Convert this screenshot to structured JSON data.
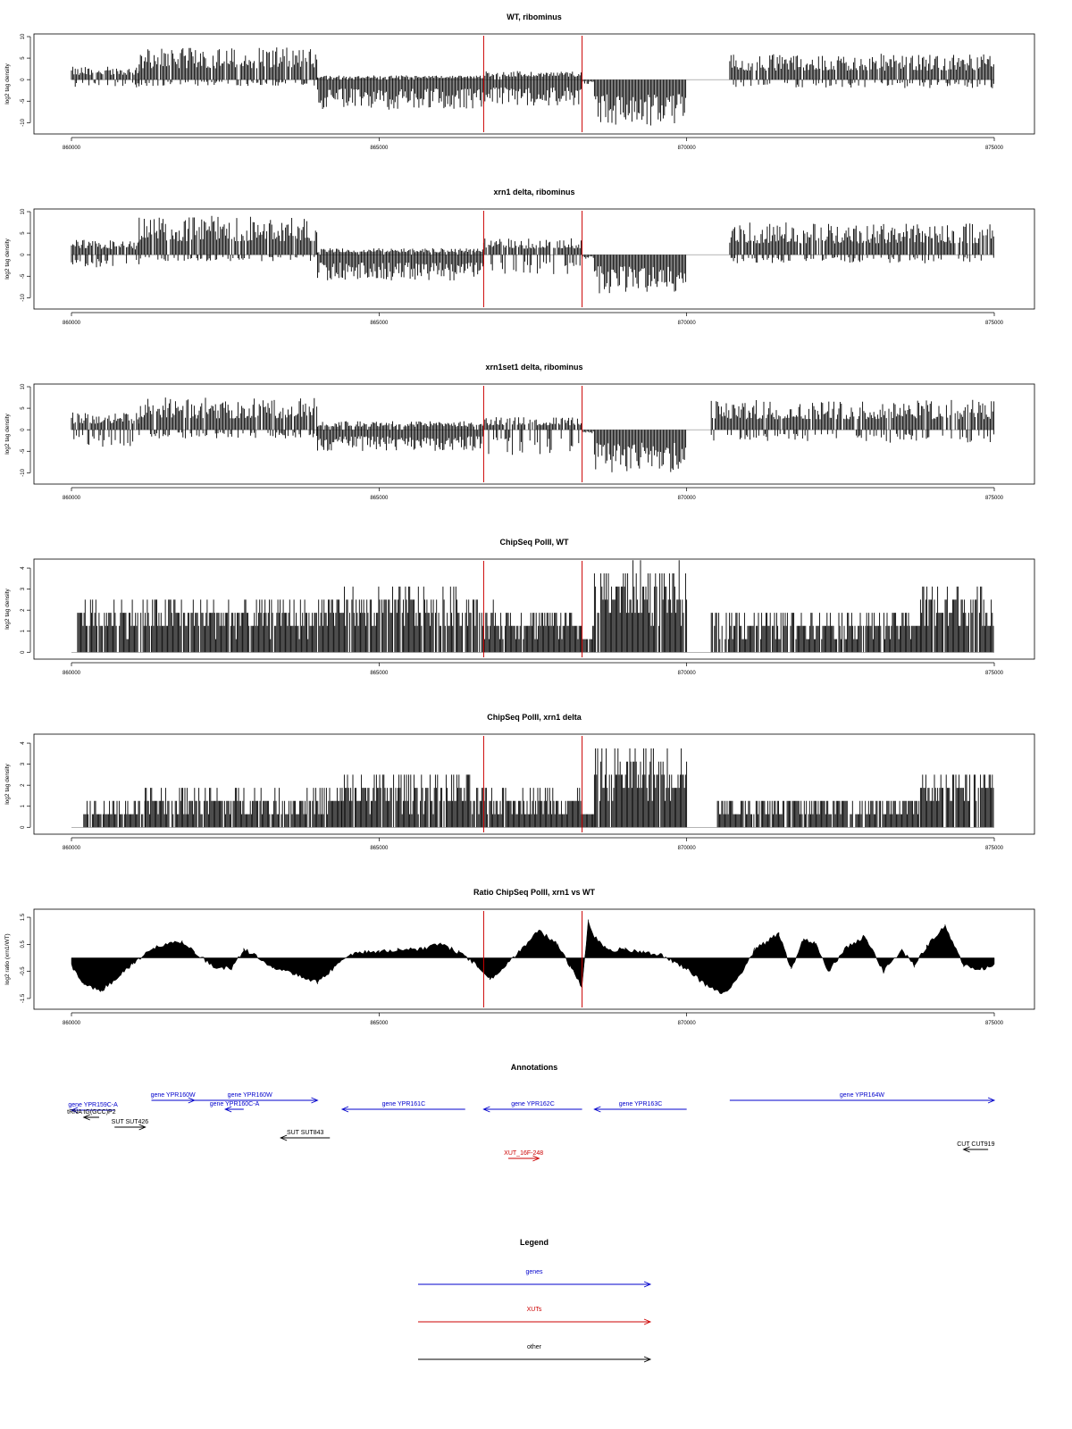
{
  "colors": {
    "signal": "#000000",
    "divider": "#cc0000",
    "genes": "#0000cc",
    "xuts": "#cc0000",
    "other": "#000000",
    "frame": "#000000"
  },
  "chart_data": [
    {
      "id": "wt_ribominus",
      "type": "bar",
      "title": "WT, ribominus",
      "ylabel": "log2 tag density",
      "xlim": [
        860000,
        875000
      ],
      "ylim": [
        -12,
        10
      ],
      "x_ticks": [
        "860000",
        "865000",
        "870000",
        "875000"
      ],
      "y_ticks": [
        "10",
        "5",
        "0",
        "-5",
        "-10"
      ],
      "vlines": [
        866700,
        868300
      ],
      "segments": [
        {
          "x0": 860000,
          "x1": 861100,
          "lo": -2,
          "hi": 3
        },
        {
          "x0": 861100,
          "x1": 864000,
          "lo": -1.5,
          "hi": 7.5
        },
        {
          "x0": 864000,
          "x1": 866700,
          "lo": -7,
          "hi": 1
        },
        {
          "x0": 866700,
          "x1": 868300,
          "lo": -6,
          "hi": 2
        },
        {
          "x0": 868300,
          "x1": 868500,
          "lo": -1,
          "hi": 0
        },
        {
          "x0": 868500,
          "x1": 870000,
          "lo": -11,
          "hi": 0
        },
        {
          "x0": 870700,
          "x1": 875000,
          "lo": -2,
          "hi": 6
        }
      ]
    },
    {
      "id": "xrn1_ribominus",
      "type": "bar",
      "title": "xrn1 delta, ribominus",
      "ylabel": "log2 tag density",
      "xlim": [
        860000,
        875000
      ],
      "ylim": [
        -12,
        10
      ],
      "x_ticks": [
        "860000",
        "865000",
        "870000",
        "875000"
      ],
      "y_ticks": [
        "10",
        "5",
        "0",
        "-5",
        "-10"
      ],
      "vlines": [
        866700,
        868300
      ],
      "segments": [
        {
          "x0": 860000,
          "x1": 861100,
          "lo": -3,
          "hi": 3.5
        },
        {
          "x0": 861100,
          "x1": 864000,
          "lo": -1.5,
          "hi": 9
        },
        {
          "x0": 864000,
          "x1": 866700,
          "lo": -6,
          "hi": 1.5
        },
        {
          "x0": 866700,
          "x1": 868300,
          "lo": -5,
          "hi": 4
        },
        {
          "x0": 868300,
          "x1": 868500,
          "lo": -1,
          "hi": 0
        },
        {
          "x0": 868500,
          "x1": 870000,
          "lo": -9,
          "hi": 0
        },
        {
          "x0": 870700,
          "x1": 875000,
          "lo": -2,
          "hi": 7.5
        }
      ]
    },
    {
      "id": "xrn1set1_ribominus",
      "type": "bar",
      "title": "xrn1set1 delta, ribominus",
      "ylabel": "log2 tag density",
      "xlim": [
        860000,
        875000
      ],
      "ylim": [
        -12,
        10
      ],
      "x_ticks": [
        "860000",
        "865000",
        "870000",
        "875000"
      ],
      "y_ticks": [
        "10",
        "5",
        "0",
        "-5",
        "-10"
      ],
      "vlines": [
        866700,
        868300
      ],
      "segments": [
        {
          "x0": 860000,
          "x1": 861100,
          "lo": -4,
          "hi": 4
        },
        {
          "x0": 861100,
          "x1": 864000,
          "lo": -2,
          "hi": 7.5
        },
        {
          "x0": 864000,
          "x1": 866700,
          "lo": -5,
          "hi": 2
        },
        {
          "x0": 866700,
          "x1": 868300,
          "lo": -6,
          "hi": 3
        },
        {
          "x0": 868300,
          "x1": 868500,
          "lo": -1,
          "hi": 0
        },
        {
          "x0": 868500,
          "x1": 870000,
          "lo": -10,
          "hi": 0
        },
        {
          "x0": 870400,
          "x1": 875000,
          "lo": -3,
          "hi": 7
        }
      ]
    },
    {
      "id": "chip_wt",
      "type": "bar",
      "title": "ChipSeq PolII, WT",
      "ylabel": "log2 tag density",
      "xlim": [
        860000,
        875000
      ],
      "ylim": [
        -0.2,
        4.3
      ],
      "x_ticks": [
        "860000",
        "865000",
        "870000",
        "875000"
      ],
      "y_ticks": [
        "4",
        "3",
        "2",
        "1",
        "0"
      ],
      "vlines": [
        866700,
        868300
      ],
      "segments": [
        {
          "x0": 860100,
          "x1": 861300,
          "lo": 0,
          "hi": 2.5
        },
        {
          "x0": 861300,
          "x1": 864000,
          "lo": 0,
          "hi": 2.5
        },
        {
          "x0": 864000,
          "x1": 866700,
          "lo": 0,
          "hi": 3
        },
        {
          "x0": 866700,
          "x1": 868300,
          "lo": 0,
          "hi": 2.2
        },
        {
          "x0": 868300,
          "x1": 868500,
          "lo": 0,
          "hi": 1
        },
        {
          "x0": 868500,
          "x1": 870000,
          "lo": 0,
          "hi": 4.1
        },
        {
          "x0": 870400,
          "x1": 873800,
          "lo": 0,
          "hi": 2
        },
        {
          "x0": 873800,
          "x1": 875000,
          "lo": 0,
          "hi": 3.2
        }
      ]
    },
    {
      "id": "chip_xrn1",
      "type": "bar",
      "title": "ChipSeq PolII, xrn1 delta",
      "ylabel": "log2 tag density",
      "xlim": [
        860000,
        875000
      ],
      "ylim": [
        -0.2,
        4.3
      ],
      "x_ticks": [
        "860000",
        "865000",
        "870000",
        "875000"
      ],
      "y_ticks": [
        "4",
        "3",
        "2",
        "1",
        "0"
      ],
      "vlines": [
        866700,
        868300
      ],
      "segments": [
        {
          "x0": 860200,
          "x1": 861200,
          "lo": 0,
          "hi": 1.2
        },
        {
          "x0": 861200,
          "x1": 864400,
          "lo": 0,
          "hi": 1.8
        },
        {
          "x0": 864400,
          "x1": 866500,
          "lo": 0,
          "hi": 2.5
        },
        {
          "x0": 866500,
          "x1": 868300,
          "lo": 0,
          "hi": 1.8
        },
        {
          "x0": 868300,
          "x1": 868500,
          "lo": 0,
          "hi": 0.8
        },
        {
          "x0": 868500,
          "x1": 870000,
          "lo": 0,
          "hi": 3.8
        },
        {
          "x0": 870500,
          "x1": 873800,
          "lo": 0,
          "hi": 1.5
        },
        {
          "x0": 873800,
          "x1": 875000,
          "lo": 0,
          "hi": 2.8
        }
      ]
    },
    {
      "id": "ratio_chip",
      "type": "area",
      "title": "Ratio ChipSeq PolII, xrn1 vs WT",
      "ylabel": "log2 ratio (xrn1/WT)",
      "xlim": [
        860000,
        875000
      ],
      "ylim": [
        -1.8,
        1.7
      ],
      "x_ticks": [
        "860000",
        "865000",
        "870000",
        "875000"
      ],
      "y_ticks": [
        "1.5",
        "0.5",
        "-0.5",
        "-1.5"
      ],
      "vlines": [
        866700,
        868300
      ],
      "x": [
        860000,
        860200,
        860500,
        860800,
        861000,
        861300,
        861500,
        861800,
        862000,
        862300,
        862600,
        862800,
        863000,
        863300,
        863600,
        864000,
        864300,
        864600,
        865000,
        865300,
        865600,
        866000,
        866300,
        866600,
        866800,
        867000,
        867300,
        867600,
        867900,
        868100,
        868300,
        868400,
        868500,
        868700,
        869000,
        869300,
        869600,
        870000,
        870300,
        870600,
        870900,
        871100,
        871300,
        871500,
        871700,
        871900,
        872100,
        872300,
        872600,
        872900,
        873200,
        873500,
        873700,
        873900,
        874200,
        874500,
        874800,
        875000
      ],
      "y": [
        -0.3,
        -1.0,
        -1.2,
        -0.6,
        -0.2,
        0.3,
        0.5,
        0.6,
        0.2,
        -0.3,
        -0.4,
        0.3,
        0.1,
        -0.4,
        -0.6,
        -0.9,
        -0.3,
        0.2,
        0.2,
        0.3,
        0.3,
        0.5,
        0.2,
        -0.3,
        -0.8,
        -0.4,
        0.3,
        1.0,
        0.5,
        -0.3,
        -1.1,
        1.4,
        0.8,
        0.3,
        0.3,
        0.2,
        0.1,
        -0.4,
        -1.0,
        -1.3,
        -0.6,
        0.3,
        0.6,
        0.9,
        -0.4,
        0.7,
        0.5,
        -0.5,
        0.4,
        0.8,
        -0.5,
        0.3,
        -0.3,
        0.4,
        1.2,
        -0.3,
        -0.4,
        -0.3
      ]
    }
  ],
  "annotations": {
    "title": "Annotations",
    "items": [
      {
        "label": "gene YPR159C-A",
        "x0": 860000,
        "x1": 860700,
        "dir": "left",
        "kind": "genes",
        "row": 1.1
      },
      {
        "label": "tRNA tG(GCC)P2",
        "x0": 860200,
        "x1": 860450,
        "dir": "left",
        "kind": "other",
        "row": 1.9
      },
      {
        "label": "gene YPR160W",
        "x0": 861300,
        "x1": 862000,
        "dir": "right",
        "kind": "genes",
        "row": 0
      },
      {
        "label": "gene YPR160W",
        "x0": 861800,
        "x1": 864000,
        "dir": "right",
        "kind": "genes",
        "row": 0
      },
      {
        "label": "gene YPR160C-A",
        "x0": 862500,
        "x1": 862800,
        "dir": "left",
        "kind": "genes",
        "row": 1
      },
      {
        "label": "SUT SUT426",
        "x0": 860700,
        "x1": 861200,
        "dir": "right",
        "kind": "other",
        "row": 3
      },
      {
        "label": "SUT SUT843",
        "x0": 863400,
        "x1": 864200,
        "dir": "left",
        "kind": "other",
        "row": 4.2
      },
      {
        "label": "gene YPR161C",
        "x0": 864400,
        "x1": 866400,
        "dir": "left",
        "kind": "genes",
        "row": 1
      },
      {
        "label": "gene YPR162C",
        "x0": 866700,
        "x1": 868300,
        "dir": "left",
        "kind": "genes",
        "row": 1
      },
      {
        "label": "gene YPR163C",
        "x0": 868500,
        "x1": 870000,
        "dir": "left",
        "kind": "genes",
        "row": 1
      },
      {
        "label": "gene YPR164W",
        "x0": 870700,
        "x1": 875000,
        "dir": "right",
        "kind": "genes",
        "row": 0
      },
      {
        "label": "XUT_16F-248",
        "x0": 867100,
        "x1": 867600,
        "dir": "right",
        "kind": "xuts",
        "row": 6.5
      },
      {
        "label": "CUT CUT919",
        "x0": 874500,
        "x1": 874900,
        "dir": "left",
        "kind": "other",
        "row": 5.5
      }
    ]
  },
  "legend": {
    "title": "Legend",
    "items": [
      {
        "label": "genes",
        "kind": "genes"
      },
      {
        "label": "XUTs",
        "kind": "xuts"
      },
      {
        "label": "other",
        "kind": "other"
      }
    ]
  }
}
